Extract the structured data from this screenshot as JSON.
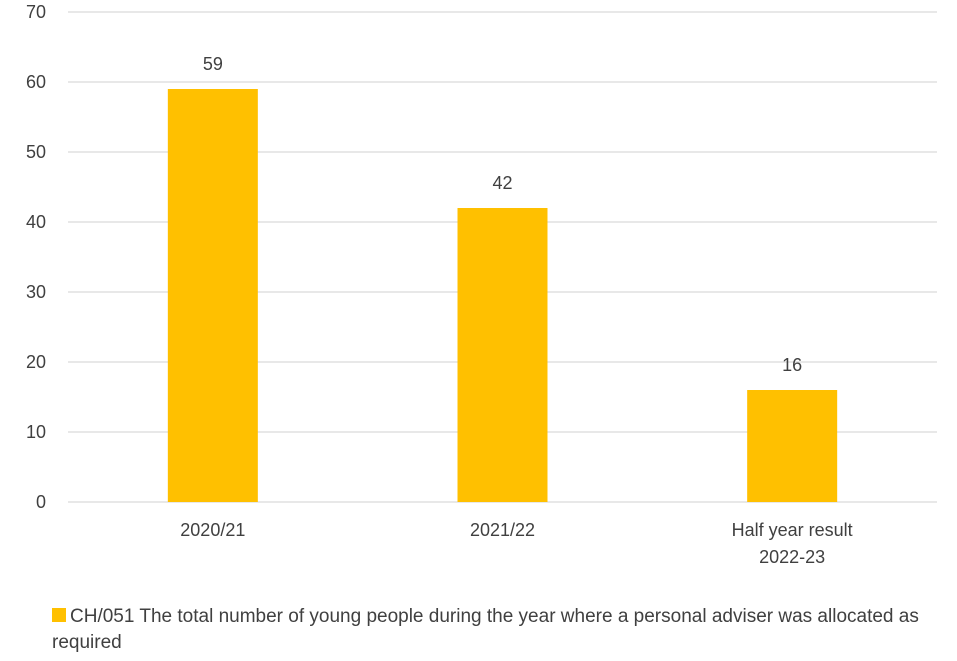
{
  "chart_data": {
    "type": "bar",
    "categories": [
      "2020/21",
      "2021/22",
      "Half year result 2022-23"
    ],
    "category_lines": [
      [
        "2020/21"
      ],
      [
        "2021/22"
      ],
      [
        "Half year result",
        "2022-23"
      ]
    ],
    "series": [
      {
        "name": "CH/051 The total number of young people during the year where a personal adviser was allocated as required",
        "values": [
          59,
          42,
          16
        ]
      }
    ],
    "data_labels": [
      "59",
      "42",
      "16"
    ],
    "yticks": [
      0,
      10,
      20,
      30,
      40,
      50,
      60,
      70
    ],
    "ylim": [
      0,
      70
    ],
    "grid": true,
    "legend_position": "bottom",
    "colors": {
      "bar": "#FFC000",
      "grid": "#D9D9D9",
      "text": "#404040"
    }
  }
}
